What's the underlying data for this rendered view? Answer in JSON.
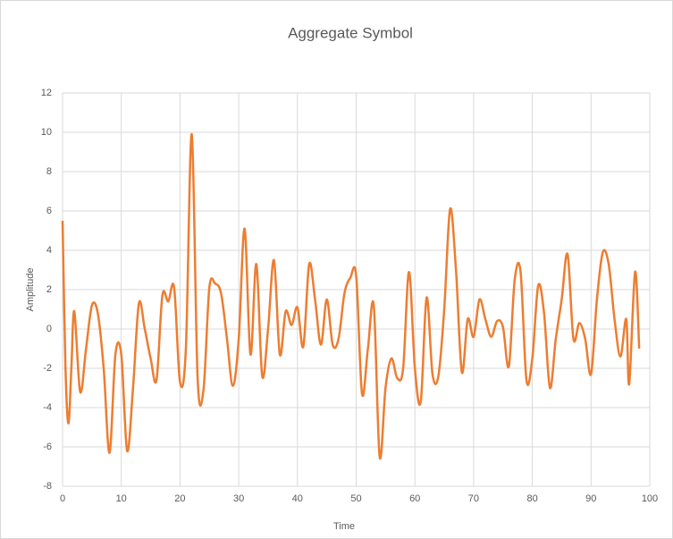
{
  "chart_data": {
    "type": "line",
    "title": "Aggregate Symbol",
    "x_label": "Time",
    "y_label": "Amplitude",
    "x": [
      0,
      0.5,
      1,
      1.5,
      2,
      3,
      4,
      5,
      6,
      7,
      8,
      9,
      10,
      11,
      12,
      13,
      14,
      15,
      16,
      17,
      18,
      19,
      20,
      21,
      22,
      23,
      24,
      25,
      26,
      27,
      28,
      29,
      30,
      31,
      32,
      33,
      34,
      35,
      36,
      37,
      38,
      39,
      40,
      41,
      42,
      43,
      44,
      45,
      46,
      47,
      48,
      49,
      50,
      51,
      52,
      53,
      54,
      55,
      56,
      57,
      58,
      59,
      60,
      61,
      62,
      63,
      64,
      65,
      66,
      67,
      68,
      69,
      70,
      71,
      72,
      73,
      74,
      75,
      76,
      77,
      78,
      79,
      80,
      81,
      82,
      83,
      84,
      85,
      86,
      87,
      88,
      89,
      90,
      91,
      92,
      93,
      94,
      95,
      96,
      96.5,
      97.5,
      98.2
    ],
    "values": [
      5.5,
      -2,
      -4.8,
      -2,
      0.9,
      -3.2,
      -1,
      1.2,
      0.8,
      -2,
      -6.3,
      -1.3,
      -1.3,
      -6.2,
      -3,
      1.3,
      0,
      -1.5,
      -2.6,
      1.7,
      1.4,
      2.1,
      -2.7,
      -1,
      9.9,
      -2.5,
      -3.1,
      2.1,
      2.3,
      1.8,
      -0.5,
      -2.9,
      -0.5,
      5.1,
      -1.3,
      3.3,
      -2.4,
      0,
      3.5,
      -1.3,
      0.9,
      0.2,
      1.1,
      -0.9,
      3.3,
      1.5,
      -0.8,
      1.5,
      -0.8,
      -0.5,
      1.8,
      2.6,
      2.7,
      -3.3,
      -1,
      1.2,
      -6.5,
      -3,
      -1.5,
      -2.5,
      -2,
      2.9,
      -2,
      -3.7,
      1.6,
      -2.3,
      -2.4,
      1,
      6.1,
      3,
      -2.2,
      0.5,
      -0.4,
      1.5,
      0.5,
      -0.4,
      0.4,
      0.1,
      -1.9,
      2.5,
      2.9,
      -2.6,
      -1.5,
      2.2,
      0.8,
      -3,
      -0.5,
      1.5,
      3.8,
      -0.5,
      0.3,
      -0.5,
      -2.3,
      1.5,
      3.9,
      3.3,
      0.5,
      -1.4,
      0.5,
      -2.8,
      2.9,
      -1
    ],
    "color": "#ed7d31",
    "xlim": [
      0,
      100
    ],
    "xticks": [
      0,
      10,
      20,
      30,
      40,
      50,
      60,
      70,
      80,
      90,
      100
    ],
    "ylim": [
      -8,
      12
    ],
    "yticks": [
      -8,
      -6,
      -4,
      -2,
      0,
      2,
      4,
      6,
      8,
      10,
      12
    ],
    "grid": true
  }
}
